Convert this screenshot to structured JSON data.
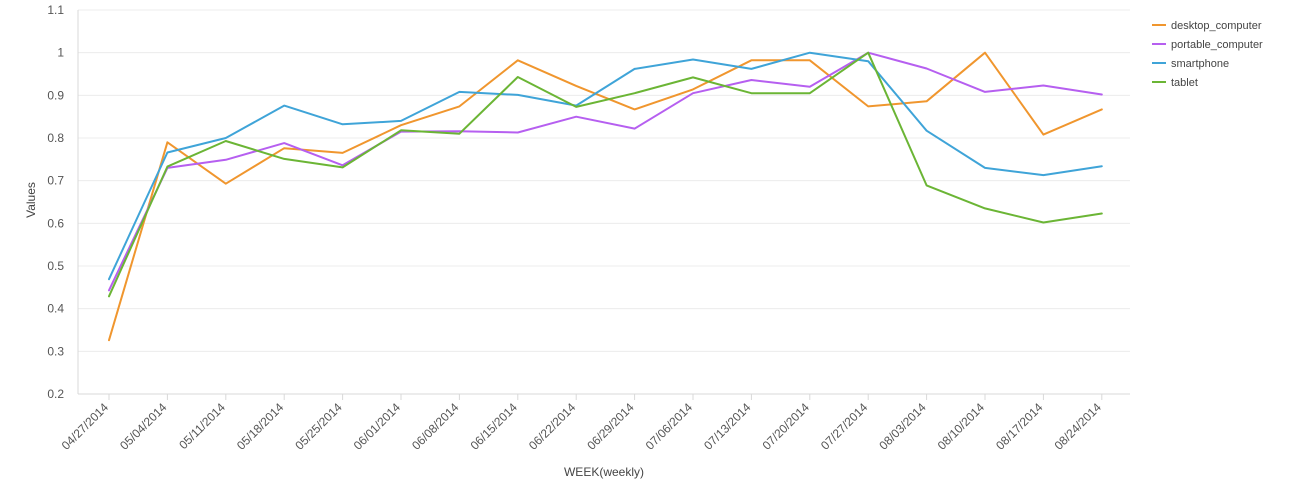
{
  "chart_data": {
    "type": "line",
    "xlabel": "WEEK(weekly)",
    "ylabel": "Values",
    "ylim": [
      0.2,
      1.1
    ],
    "yticks": [
      "0.2",
      "0.3",
      "0.4",
      "0.5",
      "0.6",
      "0.7",
      "0.8",
      "0.9",
      "1",
      "1.1"
    ],
    "grid": true,
    "legend_position": "top-right",
    "categories": [
      "04/27/2014",
      "05/04/2014",
      "05/11/2014",
      "05/18/2014",
      "05/25/2014",
      "06/01/2014",
      "06/08/2014",
      "06/15/2014",
      "06/22/2014",
      "06/29/2014",
      "07/06/2014",
      "07/13/2014",
      "07/20/2014",
      "07/27/2014",
      "08/03/2014",
      "08/10/2014",
      "08/17/2014",
      "08/24/2014"
    ],
    "series": [
      {
        "name": "desktop_computer",
        "color": "#f0962e",
        "values": [
          0.326,
          0.79,
          0.693,
          0.776,
          0.765,
          0.83,
          0.874,
          0.982,
          0.922,
          0.867,
          0.914,
          0.982,
          0.982,
          0.874,
          0.886,
          1.0,
          0.808,
          0.867
        ]
      },
      {
        "name": "portable_computer",
        "color": "#b65ff0",
        "values": [
          0.443,
          0.73,
          0.749,
          0.788,
          0.736,
          0.815,
          0.816,
          0.813,
          0.85,
          0.822,
          0.905,
          0.936,
          0.92,
          1.0,
          0.963,
          0.908,
          0.923,
          0.902
        ]
      },
      {
        "name": "smartphone",
        "color": "#3fa4d8",
        "values": [
          0.469,
          0.766,
          0.8,
          0.876,
          0.832,
          0.84,
          0.908,
          0.901,
          0.876,
          0.962,
          0.984,
          0.962,
          1.0,
          0.98,
          0.817,
          0.73,
          0.713,
          0.734
        ]
      },
      {
        "name": "tablet",
        "color": "#6bb535",
        "values": [
          0.429,
          0.733,
          0.793,
          0.751,
          0.731,
          0.818,
          0.81,
          0.943,
          0.873,
          0.905,
          0.942,
          0.905,
          0.905,
          1.0,
          0.689,
          0.635,
          0.602,
          0.623
        ]
      }
    ]
  }
}
